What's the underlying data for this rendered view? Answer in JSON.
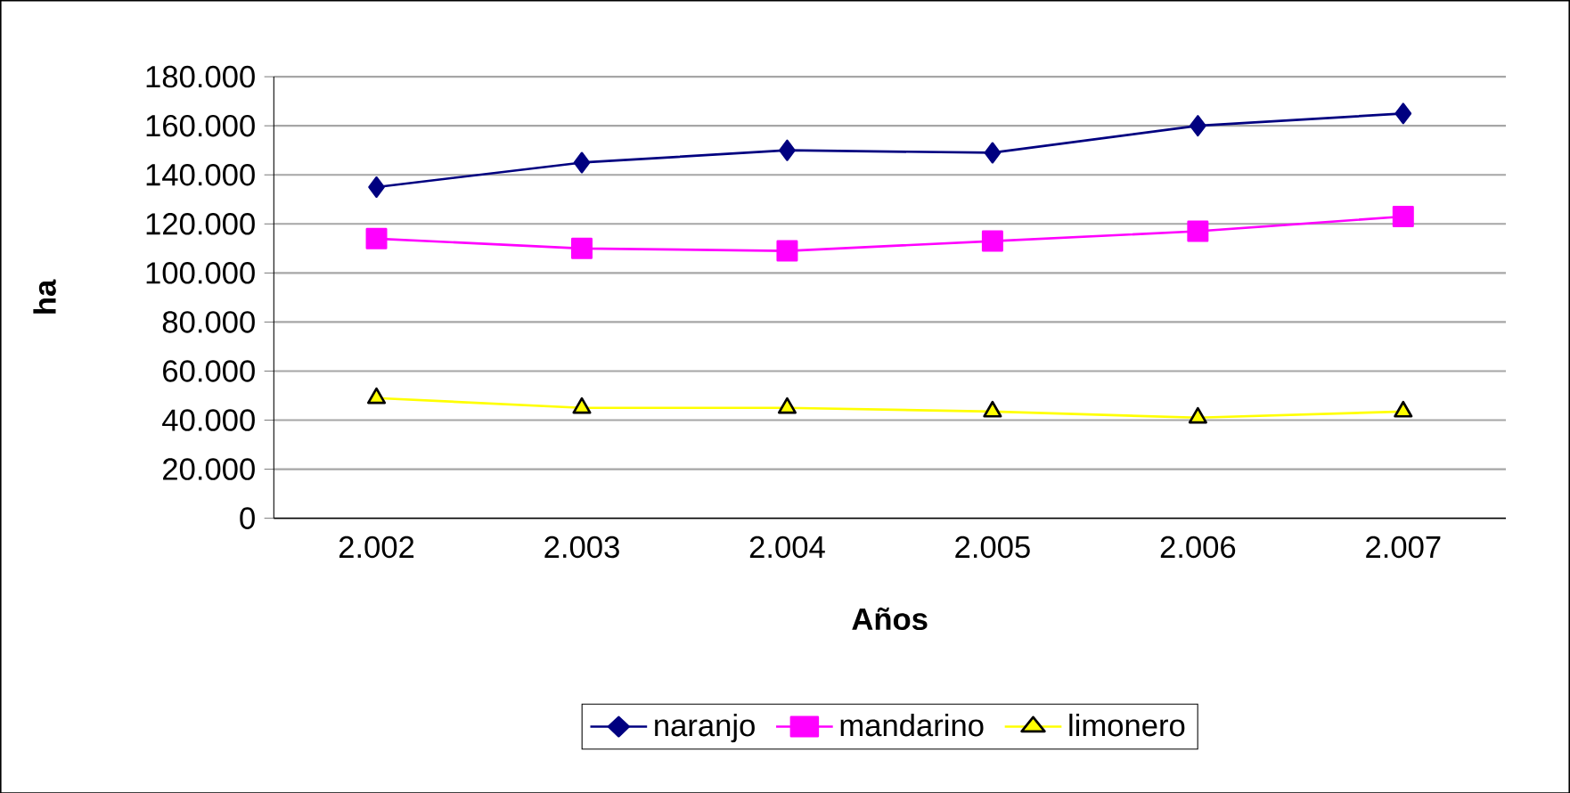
{
  "chart_data": {
    "type": "line",
    "xlabel": "Años",
    "ylabel": "ha",
    "categories": [
      "2.002",
      "2.003",
      "2.004",
      "2.005",
      "2.006",
      "2.007"
    ],
    "series": [
      {
        "name": "naranjo",
        "color": "#000080",
        "marker": "diamond",
        "values": [
          135000,
          145000,
          150000,
          149000,
          160000,
          165000
        ]
      },
      {
        "name": "mandarino",
        "color": "#ff00ff",
        "marker": "square",
        "values": [
          114000,
          110000,
          109000,
          113000,
          117000,
          123000
        ]
      },
      {
        "name": "limonero",
        "color": "#ffff00",
        "marker": "triangle",
        "values": [
          49000,
          45000,
          45000,
          43500,
          41000,
          43500
        ]
      }
    ],
    "ylim": [
      0,
      180000
    ],
    "yticks": [
      {
        "value": 0,
        "label": "0"
      },
      {
        "value": 20000,
        "label": "20.000"
      },
      {
        "value": 40000,
        "label": "40.000"
      },
      {
        "value": 60000,
        "label": "60.000"
      },
      {
        "value": 80000,
        "label": "80.000"
      },
      {
        "value": 100000,
        "label": "100.000"
      },
      {
        "value": 120000,
        "label": "120.000"
      },
      {
        "value": 140000,
        "label": "140.000"
      },
      {
        "value": 160000,
        "label": "160.000"
      },
      {
        "value": 180000,
        "label": "180.000"
      }
    ],
    "grid": "y",
    "legend": "bottom"
  }
}
